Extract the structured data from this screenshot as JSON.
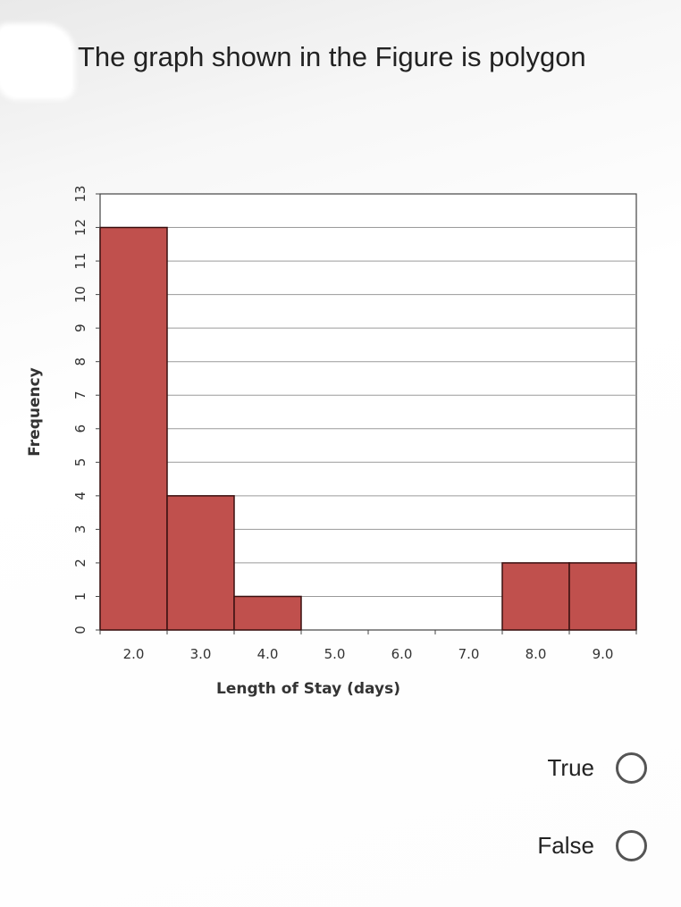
{
  "question": {
    "text": "The graph shown in the Figure is polygon"
  },
  "options": [
    {
      "label": "True",
      "selected": false
    },
    {
      "label": "False",
      "selected": false
    }
  ],
  "chart_data": {
    "type": "bar",
    "title": "",
    "xlabel": "Length of Stay (days)",
    "ylabel": "Frequency",
    "categories": [
      "2.0",
      "3.0",
      "4.0",
      "5.0",
      "6.0",
      "7.0",
      "8.0",
      "9.0"
    ],
    "values": [
      12,
      4,
      1,
      0,
      0,
      0,
      2,
      2
    ],
    "ylim": [
      0,
      13
    ],
    "yticks": [
      "0",
      "1",
      "2",
      "3",
      "4",
      "5",
      "6",
      "7",
      "8",
      "9",
      "10",
      "11",
      "12",
      "13"
    ],
    "grid": true,
    "bar_color": "#c0504d",
    "bar_edge_color": "#3a1010"
  }
}
